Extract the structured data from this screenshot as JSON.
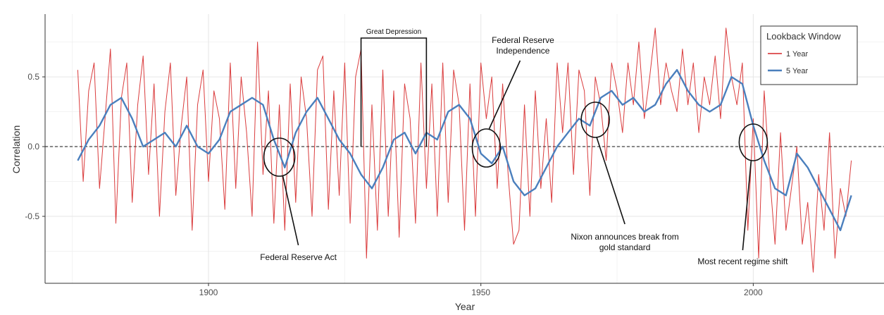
{
  "chart_data": {
    "type": "line",
    "title": "",
    "xlabel": "Year",
    "ylabel": "Correlation",
    "xlim": [
      1870,
      2024
    ],
    "ylim": [
      -0.98,
      0.95
    ],
    "x_ticks": [
      1900,
      1950,
      2000
    ],
    "y_ticks": [
      -0.5,
      0.0,
      0.5
    ],
    "y_tick_labels": [
      "-0.5",
      "0.0",
      "0.5"
    ],
    "grid": true,
    "zero_reference_line": {
      "y": 0.0,
      "style": "dashed"
    },
    "legend": {
      "title": "Lookback Window",
      "position": "top-right"
    },
    "series": [
      {
        "name": "1 Year",
        "color": "#d62728",
        "x": [
          1876,
          1877,
          1878,
          1879,
          1880,
          1881,
          1882,
          1883,
          1884,
          1885,
          1886,
          1887,
          1888,
          1889,
          1890,
          1891,
          1892,
          1893,
          1894,
          1895,
          1896,
          1897,
          1898,
          1899,
          1900,
          1901,
          1902,
          1903,
          1904,
          1905,
          1906,
          1907,
          1908,
          1909,
          1910,
          1911,
          1912,
          1913,
          1914,
          1915,
          1916,
          1917,
          1918,
          1919,
          1920,
          1921,
          1922,
          1923,
          1924,
          1925,
          1926,
          1927,
          1928,
          1929,
          1930,
          1931,
          1932,
          1933,
          1934,
          1935,
          1936,
          1937,
          1938,
          1939,
          1940,
          1941,
          1942,
          1943,
          1944,
          1945,
          1946,
          1947,
          1948,
          1949,
          1950,
          1951,
          1952,
          1953,
          1954,
          1955,
          1956,
          1957,
          1958,
          1959,
          1960,
          1961,
          1962,
          1963,
          1964,
          1965,
          1966,
          1967,
          1968,
          1969,
          1970,
          1971,
          1972,
          1973,
          1974,
          1975,
          1976,
          1977,
          1978,
          1979,
          1980,
          1981,
          1982,
          1983,
          1984,
          1985,
          1986,
          1987,
          1988,
          1989,
          1990,
          1991,
          1992,
          1993,
          1994,
          1995,
          1996,
          1997,
          1998,
          1999,
          2000,
          2001,
          2002,
          2003,
          2004,
          2005,
          2006,
          2007,
          2008,
          2009,
          2010,
          2011,
          2012,
          2013,
          2014,
          2015,
          2016,
          2017,
          2018
        ],
        "values": [
          0.55,
          -0.25,
          0.4,
          0.6,
          -0.3,
          0.2,
          0.7,
          -0.55,
          0.35,
          0.6,
          -0.4,
          0.3,
          0.65,
          -0.2,
          0.45,
          -0.5,
          0.25,
          0.6,
          -0.35,
          0.15,
          0.5,
          -0.6,
          0.3,
          0.55,
          -0.25,
          0.4,
          0.2,
          -0.45,
          0.6,
          -0.3,
          0.5,
          0.1,
          -0.5,
          0.75,
          -0.2,
          0.4,
          -0.55,
          0.3,
          -0.6,
          0.45,
          -0.4,
          0.5,
          0.2,
          -0.5,
          0.55,
          0.65,
          -0.45,
          0.4,
          -0.35,
          0.6,
          -0.55,
          0.5,
          0.7,
          -0.8,
          0.3,
          -0.6,
          0.55,
          -0.5,
          0.4,
          -0.65,
          0.45,
          0.2,
          -0.55,
          0.6,
          -0.3,
          0.45,
          -0.5,
          0.6,
          -0.4,
          0.55,
          0.3,
          -0.6,
          0.45,
          -0.5,
          0.6,
          0.2,
          0.5,
          -0.3,
          0.45,
          -0.2,
          -0.7,
          -0.6,
          0.3,
          -0.5,
          0.4,
          -0.3,
          0.2,
          -0.4,
          0.6,
          0.1,
          0.6,
          -0.2,
          0.55,
          0.4,
          -0.35,
          0.5,
          0.3,
          -0.1,
          0.6,
          0.4,
          0.1,
          0.6,
          0.3,
          0.75,
          0.2,
          0.5,
          0.85,
          0.3,
          0.6,
          0.4,
          0.25,
          0.7,
          0.3,
          0.6,
          0.1,
          0.5,
          0.3,
          0.65,
          0.2,
          0.85,
          0.5,
          0.3,
          0.6,
          -0.6,
          0.2,
          -0.8,
          0.4,
          -0.2,
          -0.7,
          0.1,
          -0.6,
          -0.3,
          0.0,
          -0.7,
          -0.4,
          -0.9,
          -0.2,
          -0.6,
          0.1,
          -0.8,
          -0.3,
          -0.5,
          -0.1
        ],
        "note": "approximate yearly envelope of the noisy monthly series"
      },
      {
        "name": "5 Year",
        "color": "#4a7fbd",
        "x": [
          1876,
          1878,
          1880,
          1882,
          1884,
          1886,
          1888,
          1890,
          1892,
          1894,
          1896,
          1898,
          1900,
          1902,
          1904,
          1906,
          1908,
          1910,
          1912,
          1914,
          1916,
          1918,
          1920,
          1922,
          1924,
          1926,
          1928,
          1930,
          1932,
          1934,
          1936,
          1938,
          1940,
          1942,
          1944,
          1946,
          1948,
          1950,
          1952,
          1954,
          1956,
          1958,
          1960,
          1962,
          1964,
          1966,
          1968,
          1970,
          1972,
          1974,
          1976,
          1978,
          1980,
          1982,
          1984,
          1986,
          1988,
          1990,
          1992,
          1994,
          1996,
          1998,
          2000,
          2002,
          2004,
          2006,
          2008,
          2010,
          2012,
          2014,
          2016,
          2018
        ],
        "values": [
          -0.1,
          0.05,
          0.15,
          0.3,
          0.35,
          0.2,
          0.0,
          0.05,
          0.1,
          0.0,
          0.15,
          0.0,
          -0.05,
          0.05,
          0.25,
          0.3,
          0.35,
          0.3,
          0.05,
          -0.15,
          0.1,
          0.25,
          0.35,
          0.2,
          0.05,
          -0.05,
          -0.2,
          -0.3,
          -0.15,
          0.05,
          0.1,
          -0.05,
          0.1,
          0.05,
          0.25,
          0.3,
          0.2,
          -0.05,
          -0.12,
          0.0,
          -0.25,
          -0.35,
          -0.3,
          -0.15,
          0.0,
          0.1,
          0.2,
          0.15,
          0.35,
          0.4,
          0.3,
          0.35,
          0.25,
          0.3,
          0.45,
          0.55,
          0.4,
          0.3,
          0.25,
          0.3,
          0.5,
          0.45,
          0.15,
          -0.1,
          -0.3,
          -0.35,
          -0.05,
          -0.15,
          -0.3,
          -0.45,
          -0.6,
          -0.35
        ]
      }
    ],
    "annotations": [
      {
        "label": "Great Depression",
        "x_range": [
          1928,
          1940
        ]
      },
      {
        "label": "Federal Reserve Act",
        "x": 1913
      },
      {
        "label": "Federal Reserve Independence",
        "lines": [
          "Federal Reserve",
          "Independence"
        ],
        "x": 1951
      },
      {
        "label": "Nixon announces break from gold standard",
        "lines": [
          "Nixon announces break from",
          "gold standard"
        ],
        "x": 1971
      },
      {
        "label": "Most recent regime shift",
        "x": 2000
      }
    ]
  }
}
